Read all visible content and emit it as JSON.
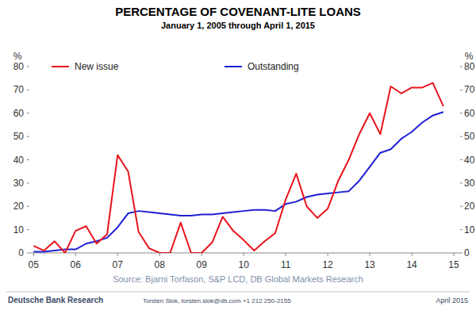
{
  "chart_data": {
    "type": "line",
    "title": "PERCENTAGE OF COVENANT-LITE LOANS",
    "subtitle": "January 1, 2005 through April 1, 2015",
    "ylabel": "%",
    "y2label": "%",
    "source": "Source: Bjarni Torfason, S&P LCD, DB Global Markets Research",
    "footer_left": "Deutsche Bank Research",
    "footer_center": "Torsten Slok, torsten.slok@db.com +1 212 250-2155",
    "footer_right": "April 2015",
    "x": [
      2005,
      2005.25,
      2005.5,
      2005.75,
      2006,
      2006.25,
      2006.5,
      2006.75,
      2007,
      2007.25,
      2007.5,
      2007.75,
      2008,
      2008.25,
      2008.5,
      2008.75,
      2009,
      2009.25,
      2009.5,
      2009.75,
      2010,
      2010.25,
      2010.5,
      2010.75,
      2011,
      2011.25,
      2011.5,
      2011.75,
      2012,
      2012.25,
      2012.5,
      2012.75,
      2013,
      2013.25,
      2013.5,
      2013.75,
      2014,
      2014.25,
      2014.5,
      2014.75
    ],
    "series": [
      {
        "name": "New issue",
        "color": "#e8141c",
        "line_style": "solid",
        "values": [
          3,
          1,
          5,
          0,
          9.5,
          11.5,
          4,
          8,
          42,
          35,
          9,
          2,
          0,
          0,
          13,
          0,
          0,
          4.5,
          15.5,
          9.5,
          5.5,
          1,
          5,
          8.5,
          23,
          34,
          20,
          15,
          19,
          31,
          40,
          51,
          60,
          51,
          71.5,
          68.5,
          71,
          71,
          73,
          63
        ]
      },
      {
        "name": "Outstanding",
        "color": "#1f1fd6",
        "line_style": "solid",
        "values": [
          0.5,
          0.5,
          1,
          1.5,
          1.5,
          4,
          5,
          6.5,
          11,
          17,
          18,
          17.5,
          17,
          16.5,
          16,
          16,
          16.5,
          16.5,
          17,
          17.5,
          18,
          18.5,
          18.5,
          18,
          21,
          22,
          24,
          25,
          25.5,
          26,
          26.5,
          31,
          37,
          43,
          44.5,
          49,
          52,
          56,
          59,
          60.5
        ]
      }
    ],
    "xlim": [
      2004.9,
      2015.15
    ],
    "xticks": [
      {
        "value": 2005,
        "label": "05"
      },
      {
        "value": 2006,
        "label": "06"
      },
      {
        "value": 2007,
        "label": "07"
      },
      {
        "value": 2008,
        "label": "08"
      },
      {
        "value": 2009,
        "label": "09"
      },
      {
        "value": 2010,
        "label": "10"
      },
      {
        "value": 2011,
        "label": "11"
      },
      {
        "value": 2012,
        "label": "12"
      },
      {
        "value": 2013,
        "label": "13"
      },
      {
        "value": 2014,
        "label": "14"
      },
      {
        "value": 2015,
        "label": "15"
      }
    ],
    "ylim": [
      0,
      80
    ],
    "yticks": [
      0,
      10,
      20,
      30,
      40,
      50,
      60,
      70,
      80
    ],
    "y2lim": [
      0,
      80
    ],
    "y2ticks": [
      0,
      10,
      20,
      30,
      40,
      50,
      60,
      70,
      80
    ],
    "grid": false,
    "legend": "top"
  }
}
